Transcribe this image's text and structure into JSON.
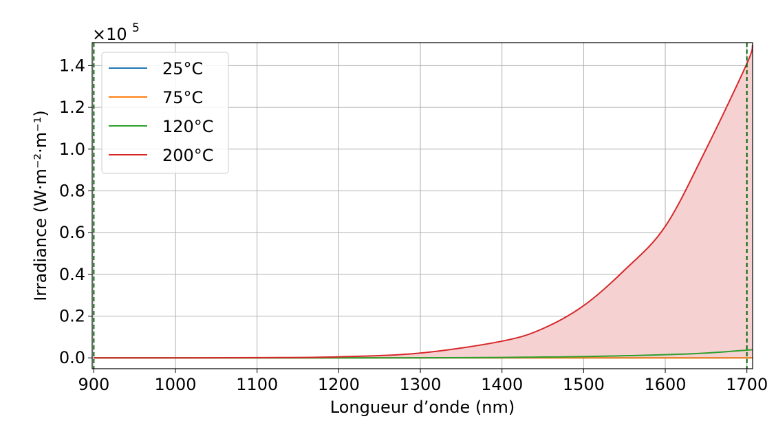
{
  "chart_data": {
    "type": "line",
    "title": "",
    "xlabel": "Longueur d’onde (nm)",
    "ylabel": "Irradiance (W·m⁻²·m⁻¹)",
    "y_scale_prefix": "×10",
    "y_scale_exponent": "5",
    "xlim": [
      898,
      1707
    ],
    "ylim": [
      -0.052,
      1.51
    ],
    "x_ticks": [
      900,
      1000,
      1100,
      1200,
      1300,
      1400,
      1500,
      1600,
      1700
    ],
    "x_tick_labels": [
      "900",
      "1000",
      "1100",
      "1200",
      "1300",
      "1400",
      "1500",
      "1600",
      "1700"
    ],
    "y_ticks": [
      0.0,
      0.2,
      0.4,
      0.6,
      0.8,
      1.0,
      1.2,
      1.4
    ],
    "y_tick_labels": [
      "0.0",
      "0.2",
      "0.4",
      "0.6",
      "0.8",
      "1.0",
      "1.2",
      "1.4"
    ],
    "grid": true,
    "legend_position": "top-left",
    "x": [
      900,
      1000,
      1100,
      1200,
      1300,
      1400,
      1450,
      1500,
      1550,
      1600,
      1650,
      1700,
      1707
    ],
    "series": [
      {
        "name": "25°C",
        "color": "#1f77b4",
        "values": [
          0,
          0,
          0,
          0,
          0,
          0,
          0,
          0,
          0,
          0,
          0,
          0,
          0
        ]
      },
      {
        "name": "75°C",
        "color": "#ff7f0e",
        "values": [
          0,
          0,
          0,
          0,
          0,
          0,
          0,
          0,
          0,
          0,
          0,
          0,
          0
        ]
      },
      {
        "name": "120°C",
        "color": "#2ca02c",
        "values": [
          0,
          0,
          0,
          0,
          0.0005,
          0.002,
          0.004,
          0.006,
          0.01,
          0.015,
          0.023,
          0.037,
          0.04
        ]
      },
      {
        "name": "200°C",
        "color": "#d62728",
        "values": [
          0,
          0,
          0.001,
          0.005,
          0.023,
          0.08,
          0.14,
          0.25,
          0.42,
          0.63,
          1.0,
          1.41,
          1.5
        ],
        "filled": true,
        "fill_color": "#f5d1d2"
      }
    ],
    "vertical_lines": [
      {
        "x": 900,
        "color": "#006400",
        "style": "dashed"
      },
      {
        "x": 1700,
        "color": "#006400",
        "style": "dashed"
      }
    ]
  }
}
